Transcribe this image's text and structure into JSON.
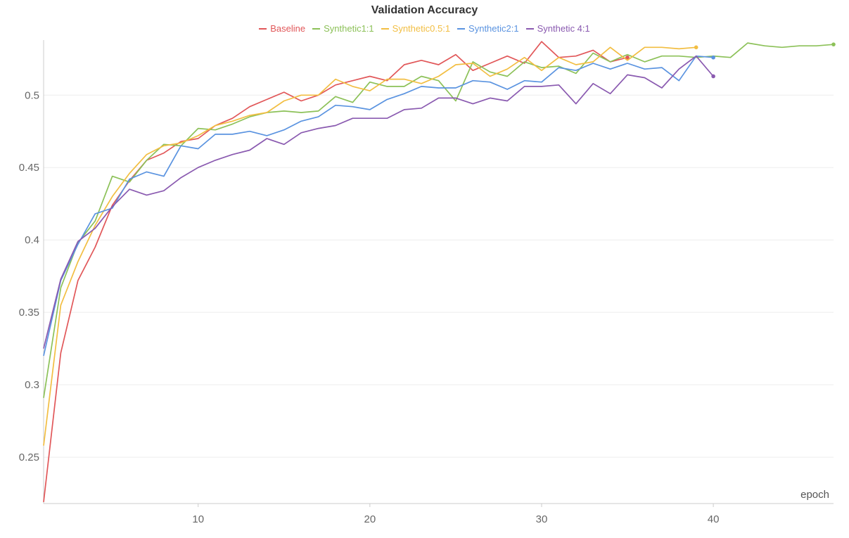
{
  "chart_data": {
    "type": "line",
    "title": "Validation Accuracy",
    "xlabel": "epoch",
    "ylabel": "",
    "xlim": [
      1,
      47
    ],
    "ylim": [
      0.218,
      0.538
    ],
    "xticks": [
      10,
      20,
      30,
      40
    ],
    "yticks": [
      0.25,
      0.3,
      0.35,
      0.4,
      0.45,
      0.5
    ],
    "grid": true,
    "legend_position": "top-center",
    "series": [
      {
        "name": "Baseline",
        "color": "#e15759",
        "x": [
          1,
          2,
          3,
          4,
          5,
          6,
          7,
          8,
          9,
          10,
          11,
          12,
          13,
          14,
          15,
          16,
          17,
          18,
          19,
          20,
          21,
          22,
          23,
          24,
          25,
          26,
          27,
          28,
          29,
          30,
          31,
          32,
          33,
          34,
          35
        ],
        "values": [
          0.219,
          0.322,
          0.372,
          0.395,
          0.424,
          0.441,
          0.455,
          0.46,
          0.468,
          0.47,
          0.479,
          0.484,
          0.492,
          0.497,
          0.502,
          0.496,
          0.5,
          0.507,
          0.51,
          0.513,
          0.51,
          0.521,
          0.524,
          0.521,
          0.528,
          0.517,
          0.522,
          0.527,
          0.522,
          0.537,
          0.526,
          0.527,
          0.531,
          0.523,
          0.526
        ]
      },
      {
        "name": "Synthetic1:1",
        "color": "#8cc158",
        "x": [
          1,
          2,
          3,
          4,
          5,
          6,
          7,
          8,
          9,
          10,
          11,
          12,
          13,
          14,
          15,
          16,
          17,
          18,
          19,
          20,
          21,
          22,
          23,
          24,
          25,
          26,
          27,
          28,
          29,
          30,
          31,
          32,
          33,
          34,
          35,
          36,
          37,
          38,
          39,
          40,
          41,
          42,
          43,
          44,
          45,
          46,
          47
        ],
        "values": [
          0.291,
          0.367,
          0.398,
          0.413,
          0.444,
          0.44,
          0.455,
          0.466,
          0.465,
          0.477,
          0.476,
          0.48,
          0.485,
          0.488,
          0.489,
          0.488,
          0.489,
          0.499,
          0.495,
          0.509,
          0.506,
          0.506,
          0.513,
          0.51,
          0.496,
          0.523,
          0.516,
          0.513,
          0.523,
          0.519,
          0.52,
          0.515,
          0.529,
          0.523,
          0.528,
          0.523,
          0.527,
          0.527,
          0.526,
          0.527,
          0.526,
          0.536,
          0.534,
          0.533,
          0.534,
          0.534,
          0.535
        ]
      },
      {
        "name": "Synthetic0.5:1",
        "color": "#f2be42",
        "x": [
          1,
          2,
          3,
          4,
          5,
          6,
          7,
          8,
          9,
          10,
          11,
          12,
          13,
          14,
          15,
          16,
          17,
          18,
          19,
          20,
          21,
          22,
          23,
          24,
          25,
          26,
          27,
          28,
          29,
          30,
          31,
          32,
          33,
          34,
          35,
          36,
          37,
          38,
          39
        ],
        "values": [
          0.258,
          0.355,
          0.385,
          0.41,
          0.43,
          0.446,
          0.459,
          0.465,
          0.467,
          0.472,
          0.479,
          0.482,
          0.486,
          0.488,
          0.496,
          0.5,
          0.5,
          0.511,
          0.506,
          0.503,
          0.511,
          0.511,
          0.508,
          0.513,
          0.521,
          0.522,
          0.513,
          0.518,
          0.526,
          0.517,
          0.526,
          0.521,
          0.523,
          0.533,
          0.524,
          0.533,
          0.533,
          0.532,
          0.533
        ]
      },
      {
        "name": "Synthetic2:1",
        "color": "#5a93e0",
        "x": [
          1,
          2,
          3,
          4,
          5,
          6,
          7,
          8,
          9,
          10,
          11,
          12,
          13,
          14,
          15,
          16,
          17,
          18,
          19,
          20,
          21,
          22,
          23,
          24,
          25,
          26,
          27,
          28,
          29,
          30,
          31,
          32,
          33,
          34,
          35,
          36,
          37,
          38,
          39,
          40
        ],
        "values": [
          0.32,
          0.372,
          0.397,
          0.418,
          0.422,
          0.442,
          0.447,
          0.444,
          0.465,
          0.463,
          0.473,
          0.473,
          0.475,
          0.472,
          0.476,
          0.482,
          0.485,
          0.493,
          0.492,
          0.49,
          0.497,
          0.501,
          0.506,
          0.505,
          0.505,
          0.51,
          0.509,
          0.504,
          0.51,
          0.509,
          0.519,
          0.517,
          0.522,
          0.518,
          0.522,
          0.518,
          0.519,
          0.51,
          0.527,
          0.526
        ]
      },
      {
        "name": "Synthetic 4:1",
        "color": "#8a5ab0",
        "x": [
          1,
          2,
          3,
          4,
          5,
          6,
          7,
          8,
          9,
          10,
          11,
          12,
          13,
          14,
          15,
          16,
          17,
          18,
          19,
          20,
          21,
          22,
          23,
          24,
          25,
          26,
          27,
          28,
          29,
          30,
          31,
          32,
          33,
          34,
          35,
          36,
          37,
          38,
          39,
          40
        ],
        "values": [
          0.325,
          0.373,
          0.399,
          0.408,
          0.423,
          0.435,
          0.431,
          0.434,
          0.443,
          0.45,
          0.455,
          0.459,
          0.462,
          0.47,
          0.466,
          0.474,
          0.477,
          0.479,
          0.484,
          0.484,
          0.484,
          0.49,
          0.491,
          0.498,
          0.498,
          0.494,
          0.498,
          0.496,
          0.506,
          0.506,
          0.507,
          0.494,
          0.508,
          0.501,
          0.514,
          0.512,
          0.505,
          0.518,
          0.527,
          0.513
        ]
      }
    ]
  }
}
